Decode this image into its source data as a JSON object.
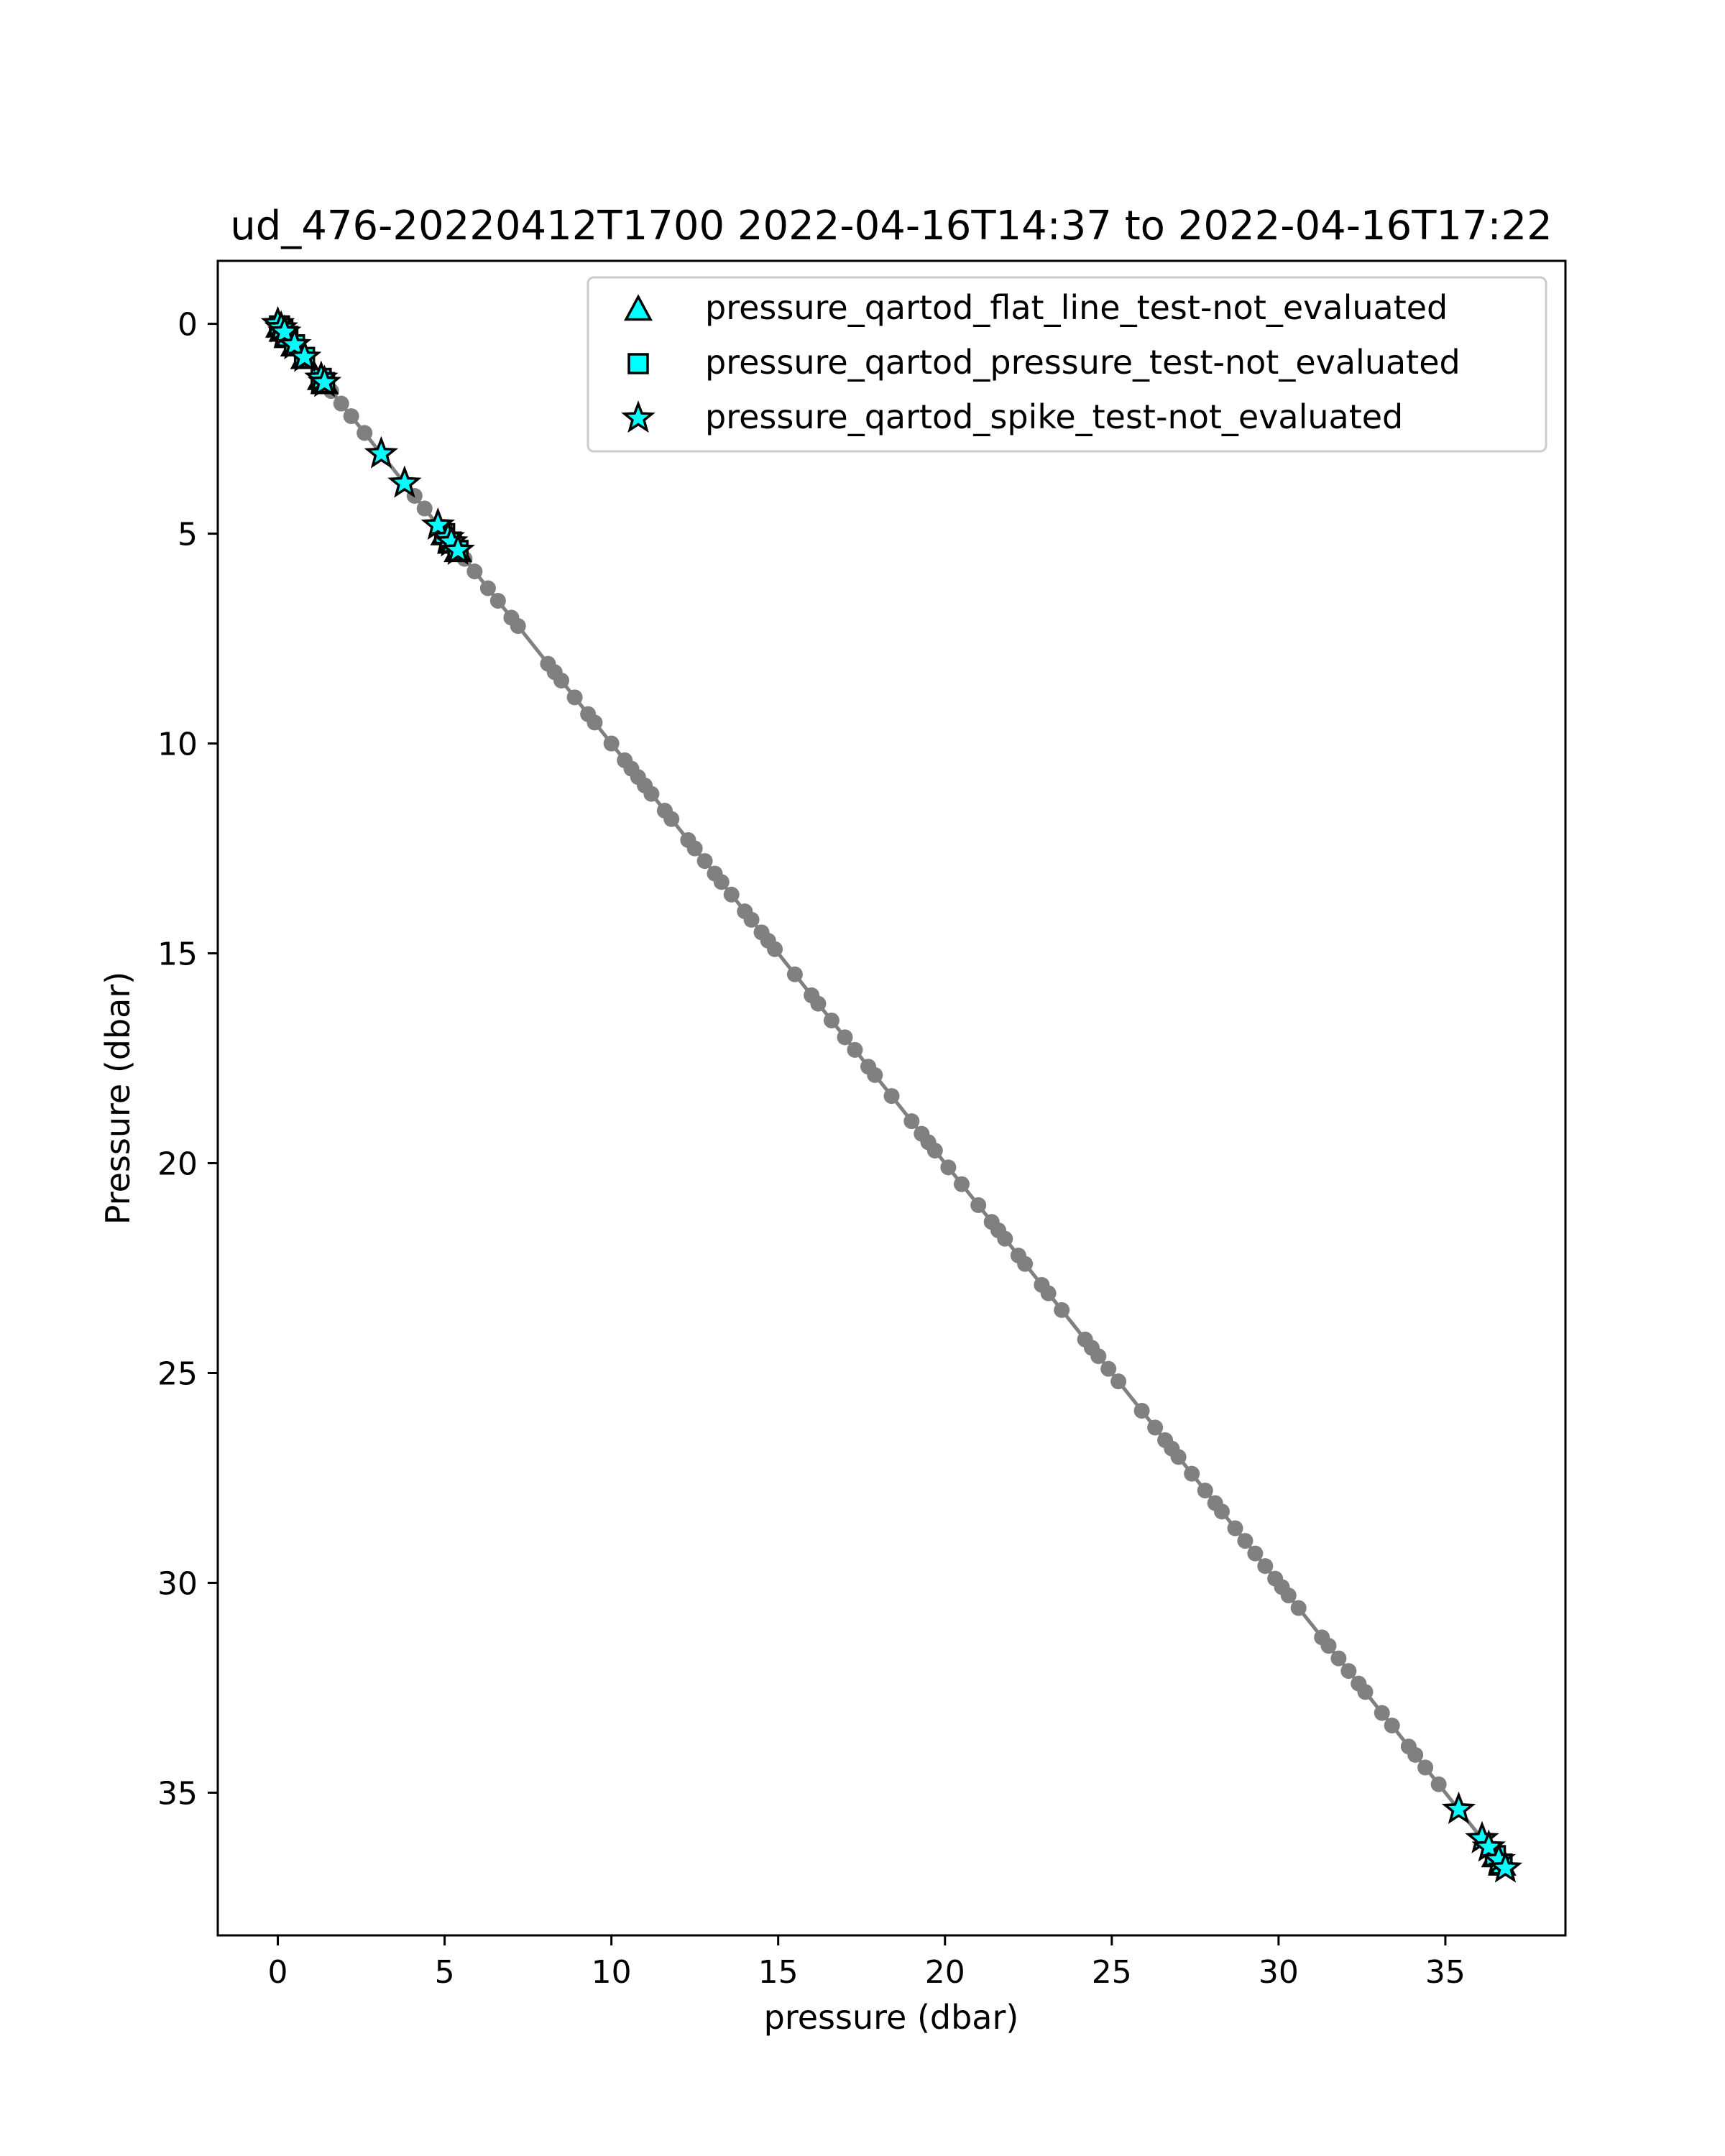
{
  "chart_data": {
    "type": "scatter",
    "title": "ud_476-20220412T1700 2022-04-16T14:37 to 2022-04-16T17:22",
    "xlabel": "pressure (dbar)",
    "ylabel": "Pressure (dbar)",
    "xlim": [
      -1.8,
      38.6
    ],
    "ylim": [
      38.4,
      -1.5
    ],
    "y_inverted": true,
    "x_ticks": [
      0,
      5,
      10,
      15,
      20,
      25,
      30,
      35
    ],
    "y_ticks": [
      0,
      5,
      10,
      15,
      20,
      25,
      30,
      35
    ],
    "grid": false,
    "legend_position": "top-right",
    "line": {
      "color": "#808080",
      "x": [
        0,
        36.8
      ],
      "y": [
        0,
        36.8
      ]
    },
    "points": {
      "color": "#808080",
      "values": [
        1.6,
        1.9,
        2.2,
        2.6,
        4.1,
        4.4,
        5.6,
        5.9,
        6.3,
        6.6,
        7.0,
        7.2,
        8.1,
        8.3,
        8.5,
        8.9,
        9.3,
        9.5,
        10.0,
        10.4,
        10.6,
        10.8,
        11.0,
        11.2,
        11.6,
        11.8,
        12.3,
        12.5,
        12.8,
        13.1,
        13.3,
        13.6,
        14.0,
        14.2,
        14.5,
        14.7,
        14.9,
        15.5,
        16.0,
        16.2,
        16.6,
        17.0,
        17.3,
        17.7,
        17.9,
        18.4,
        19.0,
        19.3,
        19.5,
        19.7,
        20.1,
        20.5,
        21.0,
        21.4,
        21.6,
        21.8,
        22.2,
        22.4,
        22.9,
        23.1,
        23.5,
        24.2,
        24.4,
        24.6,
        24.9,
        25.2,
        25.9,
        26.3,
        26.6,
        26.8,
        27.0,
        27.4,
        27.8,
        28.1,
        28.3,
        28.7,
        29.0,
        29.3,
        29.6,
        29.9,
        30.1,
        30.3,
        30.6,
        31.3,
        31.5,
        31.8,
        32.1,
        32.4,
        32.6,
        33.1,
        33.4,
        33.9,
        34.1,
        34.4,
        34.8
      ],
      "point_count_note": ""
    },
    "series": [
      {
        "name": "pressure_qartod_flat_line_test-not_evaluated",
        "marker": "triangle",
        "color": "#00ffff",
        "values": [
          0.05,
          0.15,
          0.3,
          0.5,
          0.8,
          1.3,
          1.4,
          5.0,
          5.2,
          5.4,
          36.5,
          36.7
        ]
      },
      {
        "name": "pressure_qartod_pressure_test-not_evaluated",
        "marker": "square",
        "color": "#00ffff",
        "values": [
          0.05,
          0.15,
          0.3,
          0.5,
          0.8,
          1.3,
          1.4,
          5.0,
          5.2,
          5.4,
          36.5,
          36.7
        ]
      },
      {
        "name": "pressure_qartod_spike_test-not_evaluated",
        "marker": "star",
        "color": "#00ffff",
        "values": [
          0.0,
          0.1,
          0.2,
          0.5,
          0.8,
          1.3,
          1.4,
          3.1,
          3.8,
          4.8,
          5.1,
          5.2,
          5.4,
          35.4,
          36.1,
          36.3,
          36.6,
          36.8
        ]
      }
    ]
  }
}
